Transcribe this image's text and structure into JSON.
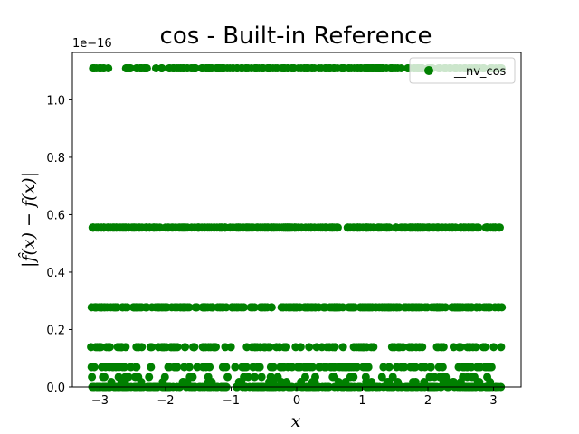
{
  "chart_data": {
    "type": "scatter",
    "title": "cos - Built-in Reference",
    "xlabel": "x",
    "ylabel": "|f̂(x) − f(x)|",
    "y_offset_label": "1e−16",
    "xlim": [
      -3.42,
      3.42
    ],
    "ylim": [
      0,
      1.165
    ],
    "x_ticks": [
      -3,
      -2,
      -1,
      0,
      1,
      2,
      3
    ],
    "x_tick_labels": [
      "−3",
      "−2",
      "−1",
      "0",
      "1",
      "2",
      "3"
    ],
    "y_ticks": [
      0.0,
      0.2,
      0.4,
      0.6,
      0.8,
      1.0
    ],
    "y_tick_labels": [
      "0.0",
      "0.2",
      "0.4",
      "0.6",
      "0.8",
      "1.0"
    ],
    "grid": false,
    "legend_position": "top-right",
    "series": [
      {
        "name": "__nv_cos",
        "color": "#008000",
        "marker": "circle",
        "bands": [
          {
            "y": 1.11,
            "density": "dense",
            "x_range": [
              -3.14,
              3.14
            ]
          },
          {
            "y": 0.555,
            "density": "dense",
            "x_range": [
              -3.14,
              3.14
            ]
          },
          {
            "y": 0.2775,
            "density": "dense",
            "x_range": [
              -3.14,
              3.14
            ]
          },
          {
            "y": 0.139,
            "density": "medium",
            "x_range": [
              -3.14,
              3.14
            ]
          },
          {
            "y": 0.0694,
            "density": "medium",
            "x_range": [
              -3.14,
              3.14
            ]
          },
          {
            "y": 0.0347,
            "density": "sparse",
            "x_range": [
              -3.14,
              3.14
            ]
          },
          {
            "y": 0.0173,
            "density": "sparse",
            "x_range": [
              -3.14,
              3.14
            ]
          },
          {
            "y": 0.0,
            "density": "dense",
            "x_range": [
              -3.14,
              3.14
            ]
          }
        ]
      }
    ]
  }
}
